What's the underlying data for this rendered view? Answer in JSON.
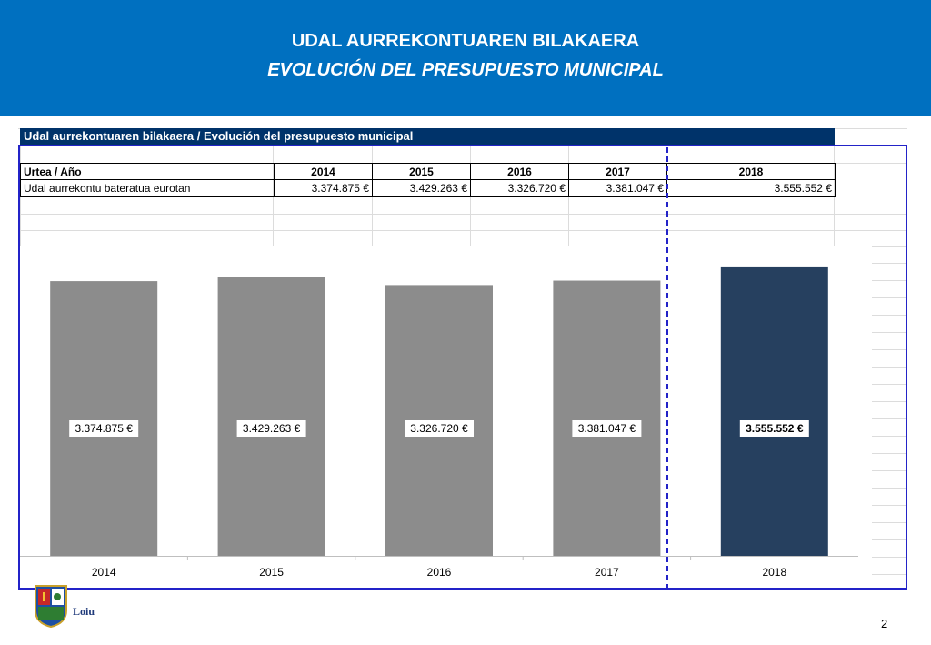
{
  "header": {
    "title": "UDAL AURREKONTUAREN BILAKAERA",
    "subtitle": "EVOLUCIÓN DEL PRESUPUESTO MUNICIPAL"
  },
  "table": {
    "caption": "Udal aurrekontuaren bilakaera / Evolución del presupuesto  municipal",
    "header_label": "Urtea  / Año",
    "years": [
      "2014",
      "2015",
      "2016",
      "2017",
      "2018"
    ],
    "row_label": "Udal aurrekontu bateratua eurotan",
    "values": [
      "3.374.875 €",
      "3.429.263 €",
      "3.326.720 €",
      "3.381.047 €",
      "3.555.552 €"
    ]
  },
  "chart_data": {
    "type": "bar",
    "categories": [
      "2014",
      "2015",
      "2016",
      "2017",
      "2018"
    ],
    "values": [
      3374875,
      3429263,
      3326720,
      3381047,
      3555552
    ],
    "data_labels": [
      "3.374.875 €",
      "3.429.263 €",
      "3.326.720 €",
      "3.381.047 €",
      "3.555.552 €"
    ],
    "ylim": [
      0,
      3700000
    ],
    "grid": false,
    "colors": {
      "bar": "#8c8c8c",
      "highlight": "#26405f"
    },
    "highlight_index": 4
  },
  "footer": {
    "logo_text": "Loiu",
    "page_number": "2"
  },
  "colors": {
    "header_bg": "#0070c0",
    "table_caption_bg": "#00336a",
    "frame": "#2323c8"
  }
}
